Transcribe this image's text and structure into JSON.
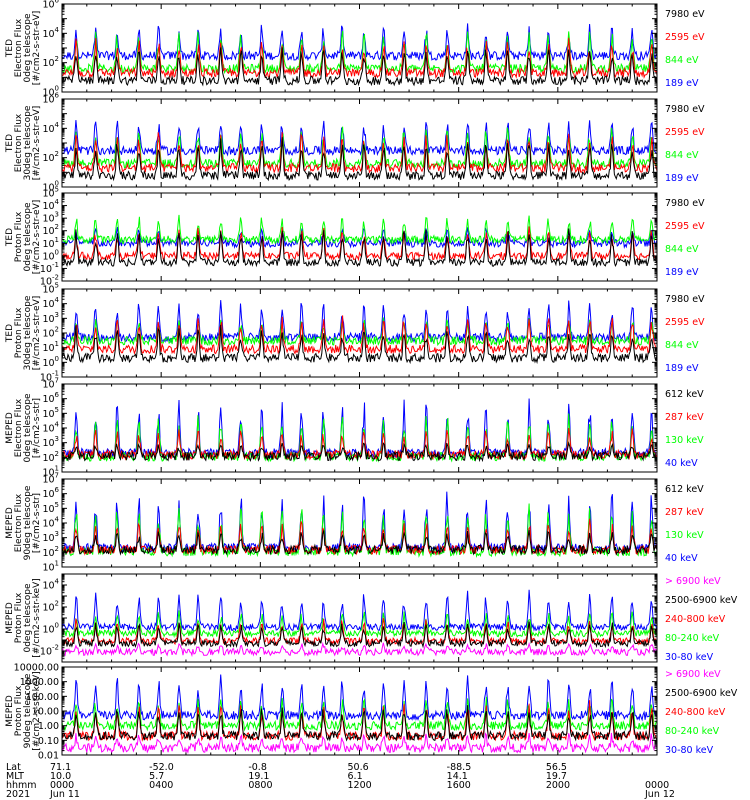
{
  "colors": {
    "black": "#000000",
    "red": "#ff0000",
    "green": "#00ff00",
    "blue": "#0000ff",
    "magenta": "#ff00ff"
  },
  "chart_data": {
    "type": "line",
    "panels": [
      {
        "ylabel": [
          "TED",
          "Electron Flux",
          "0deg telescope",
          "[#/cm2-s-str-eV]"
        ],
        "ylim": [
          1,
          1000000
        ],
        "log": true,
        "tick_labels": [
          {
            "value": 1,
            "mant": "10",
            "exp": "0"
          },
          {
            "value": 100,
            "mant": "10",
            "exp": "2"
          },
          {
            "value": 10000,
            "mant": "10",
            "exp": "4"
          },
          {
            "value": 1000000,
            "mant": "10",
            "exp": "6"
          }
        ],
        "series": [
          {
            "name": "7980 eV",
            "color": "black",
            "baseline": 6,
            "peak": 2000
          },
          {
            "name": "2595 eV",
            "color": "red",
            "baseline": 20,
            "peak": 5000
          },
          {
            "name": "844 eV",
            "color": "green",
            "baseline": 40,
            "peak": 20000
          },
          {
            "name": "189 eV",
            "color": "blue",
            "baseline": 300,
            "peak": 50000
          }
        ]
      },
      {
        "ylabel": [
          "TED",
          "Electron Flux",
          "30deg telescope",
          "[#/cm2-s-str-eV]"
        ],
        "ylim": [
          1,
          1000000
        ],
        "log": true,
        "tick_labels": [
          {
            "value": 1,
            "mant": "10",
            "exp": "0"
          },
          {
            "value": 100,
            "mant": "10",
            "exp": "2"
          },
          {
            "value": 10000,
            "mant": "10",
            "exp": "4"
          },
          {
            "value": 1000000,
            "mant": "10",
            "exp": "6"
          }
        ],
        "series": [
          {
            "name": "7980 eV",
            "color": "black",
            "baseline": 6,
            "peak": 2000
          },
          {
            "name": "2595 eV",
            "color": "red",
            "baseline": 20,
            "peak": 5000
          },
          {
            "name": "844 eV",
            "color": "green",
            "baseline": 40,
            "peak": 20000
          },
          {
            "name": "189 eV",
            "color": "blue",
            "baseline": 300,
            "peak": 50000
          }
        ]
      },
      {
        "ylabel": [
          "TED",
          "Proton Flux",
          "0deg telescope",
          "[#/cm2-s-str-eV]"
        ],
        "ylim": [
          0.01,
          100000
        ],
        "log": true,
        "tick_labels": [
          {
            "value": 0.01,
            "mant": "10",
            "exp": "-2"
          },
          {
            "value": 0.1,
            "mant": "10",
            "exp": "-1"
          },
          {
            "value": 1,
            "mant": "10",
            "exp": "0"
          },
          {
            "value": 10,
            "mant": "10",
            "exp": "1"
          },
          {
            "value": 100,
            "mant": "10",
            "exp": "2"
          },
          {
            "value": 1000,
            "mant": "10",
            "exp": "3"
          },
          {
            "value": 10000,
            "mant": "10",
            "exp": "4"
          },
          {
            "value": 100000,
            "mant": "10",
            "exp": "5"
          }
        ],
        "series": [
          {
            "name": "7980 eV",
            "color": "black",
            "baseline": 0.3,
            "peak": 200
          },
          {
            "name": "2595 eV",
            "color": "red",
            "baseline": 1,
            "peak": 200
          },
          {
            "name": "844 eV",
            "color": "green",
            "baseline": 20,
            "peak": 2000
          },
          {
            "name": "189 eV",
            "color": "blue",
            "baseline": 10,
            "peak": 200
          }
        ]
      },
      {
        "ylabel": [
          "TED",
          "Proton Flux",
          "30deg telescope",
          "[#/cm2-s-str-eV]"
        ],
        "ylim": [
          0.1,
          100000
        ],
        "log": true,
        "tick_labels": [
          {
            "value": 0.1,
            "mant": "10",
            "exp": "-1"
          },
          {
            "value": 1,
            "mant": "10",
            "exp": "0"
          },
          {
            "value": 10,
            "mant": "10",
            "exp": "1"
          },
          {
            "value": 100,
            "mant": "10",
            "exp": "2"
          },
          {
            "value": 1000,
            "mant": "10",
            "exp": "3"
          },
          {
            "value": 10000,
            "mant": "10",
            "exp": "4"
          },
          {
            "value": 100000,
            "mant": "10",
            "exp": "5"
          }
        ],
        "series": [
          {
            "name": "7980 eV",
            "color": "black",
            "baseline": 2,
            "peak": 300
          },
          {
            "name": "2595 eV",
            "color": "red",
            "baseline": 8,
            "peak": 2000
          },
          {
            "name": "844 eV",
            "color": "green",
            "baseline": 30,
            "peak": 1000
          },
          {
            "name": "189 eV",
            "color": "blue",
            "baseline": 50,
            "peak": 20000
          }
        ]
      },
      {
        "ylabel": [
          "MEPED",
          "Electron Flux",
          "0deg telescope",
          "[#/cm2-s-str]"
        ],
        "ylim": [
          10,
          10000000
        ],
        "log": true,
        "tick_labels": [
          {
            "value": 10,
            "mant": "10",
            "exp": "1"
          },
          {
            "value": 100,
            "mant": "10",
            "exp": "2"
          },
          {
            "value": 1000,
            "mant": "10",
            "exp": "3"
          },
          {
            "value": 10000,
            "mant": "10",
            "exp": "4"
          },
          {
            "value": 100000,
            "mant": "10",
            "exp": "5"
          },
          {
            "value": 1000000,
            "mant": "10",
            "exp": "6"
          },
          {
            "value": 10000000,
            "mant": "10",
            "exp": "7"
          }
        ],
        "series": [
          {
            "name": "612 keV",
            "color": "black",
            "baseline": 120,
            "peak": 1000
          },
          {
            "name": "287 keV",
            "color": "red",
            "baseline": 150,
            "peak": 10000
          },
          {
            "name": "130 keV",
            "color": "green",
            "baseline": 110,
            "peak": 100000
          },
          {
            "name": "40 keV",
            "color": "blue",
            "baseline": 200,
            "peak": 1000000
          }
        ]
      },
      {
        "ylabel": [
          "MEPED",
          "Electron Flux",
          "90deg telescope",
          "[#/cm2-s-str]"
        ],
        "ylim": [
          10,
          10000000
        ],
        "log": true,
        "tick_labels": [
          {
            "value": 10,
            "mant": "10",
            "exp": "1"
          },
          {
            "value": 100,
            "mant": "10",
            "exp": "2"
          },
          {
            "value": 1000,
            "mant": "10",
            "exp": "3"
          },
          {
            "value": 10000,
            "mant": "10",
            "exp": "4"
          },
          {
            "value": 100000,
            "mant": "10",
            "exp": "5"
          },
          {
            "value": 1000000,
            "mant": "10",
            "exp": "6"
          },
          {
            "value": 10000000,
            "mant": "10",
            "exp": "7"
          }
        ],
        "series": [
          {
            "name": "612 keV",
            "color": "black",
            "baseline": 150,
            "peak": 3000
          },
          {
            "name": "287 keV",
            "color": "red",
            "baseline": 150,
            "peak": 20000
          },
          {
            "name": "130 keV",
            "color": "green",
            "baseline": 110,
            "peak": 200000
          },
          {
            "name": "40 keV",
            "color": "blue",
            "baseline": 200,
            "peak": 2000000
          }
        ]
      },
      {
        "ylabel": [
          "MEPED",
          "Proton Flux",
          "0deg telescope",
          "[#/cm2-s-str-keV]"
        ],
        "ylim": [
          0.001,
          100000
        ],
        "log": true,
        "tick_labels": [
          {
            "value": 0.01,
            "mant": "10",
            "exp": "-2"
          },
          {
            "value": 1,
            "mant": "10",
            "exp": "0"
          },
          {
            "value": 100,
            "mant": "10",
            "exp": "2"
          },
          {
            "value": 10000,
            "mant": "10",
            "exp": "4"
          }
        ],
        "series": [
          {
            "name": "> 6900 keV",
            "color": "magenta",
            "baseline": 0.008,
            "peak": 0.05
          },
          {
            "name": "2500-6900 keV",
            "color": "black",
            "baseline": 0.05,
            "peak": 5
          },
          {
            "name": "240-800 keV",
            "color": "red",
            "baseline": 0.08,
            "peak": 10
          },
          {
            "name": "80-240 keV",
            "color": "green",
            "baseline": 0.4,
            "peak": 50
          },
          {
            "name": "30-80 keV",
            "color": "blue",
            "baseline": 1.5,
            "peak": 3000
          }
        ]
      },
      {
        "ylabel": [
          "MEPED",
          "Proton Flux",
          "90deg telescope",
          "[#/cm2-s-str-keV]"
        ],
        "ylim": [
          0.01,
          10000
        ],
        "log": true,
        "tick_labels": [
          {
            "value": 0.01,
            "text": "0.01"
          },
          {
            "value": 0.1,
            "text": "0.10"
          },
          {
            "value": 1,
            "text": "1.00"
          },
          {
            "value": 10,
            "text": "10.00"
          },
          {
            "value": 100,
            "text": "100.00"
          },
          {
            "value": 1000,
            "text": "1000.00"
          },
          {
            "value": 10000,
            "text": "10000.00"
          }
        ],
        "series": [
          {
            "name": "> 6900 keV",
            "color": "magenta",
            "baseline": 0.03,
            "peak": 0.3
          },
          {
            "name": "2500-6900 keV",
            "color": "black",
            "baseline": 0.2,
            "peak": 20
          },
          {
            "name": "240-800 keV",
            "color": "red",
            "baseline": 0.2,
            "peak": 50
          },
          {
            "name": "80-240 keV",
            "color": "green",
            "baseline": 1,
            "peak": 100
          },
          {
            "name": "30-80 keV",
            "color": "blue",
            "baseline": 5,
            "peak": 3000
          }
        ]
      }
    ],
    "x_axis": {
      "hours_range": [
        0,
        24
      ],
      "row_labels": [
        "Lat",
        "MLT",
        "hhmm",
        "2021"
      ],
      "ticks": [
        {
          "hour": 0,
          "lat": "71.1",
          "mlt": "10.0",
          "hhmm": "0000",
          "date": "Jun 11"
        },
        {
          "hour": 4,
          "lat": "-52.0",
          "mlt": "5.7",
          "hhmm": "0400",
          "date": ""
        },
        {
          "hour": 8,
          "lat": "-0.8",
          "mlt": "19.1",
          "hhmm": "0800",
          "date": ""
        },
        {
          "hour": 12,
          "lat": "50.6",
          "mlt": "6.1",
          "hhmm": "1200",
          "date": ""
        },
        {
          "hour": 16,
          "lat": "-88.5",
          "mlt": "14.1",
          "hhmm": "1600",
          "date": ""
        },
        {
          "hour": 20,
          "lat": "56.5",
          "mlt": "19.7",
          "hhmm": "2000",
          "date": ""
        },
        {
          "hour": 24,
          "lat": "",
          "mlt": "",
          "hhmm": "0000",
          "date": "Jun 12"
        }
      ]
    }
  }
}
